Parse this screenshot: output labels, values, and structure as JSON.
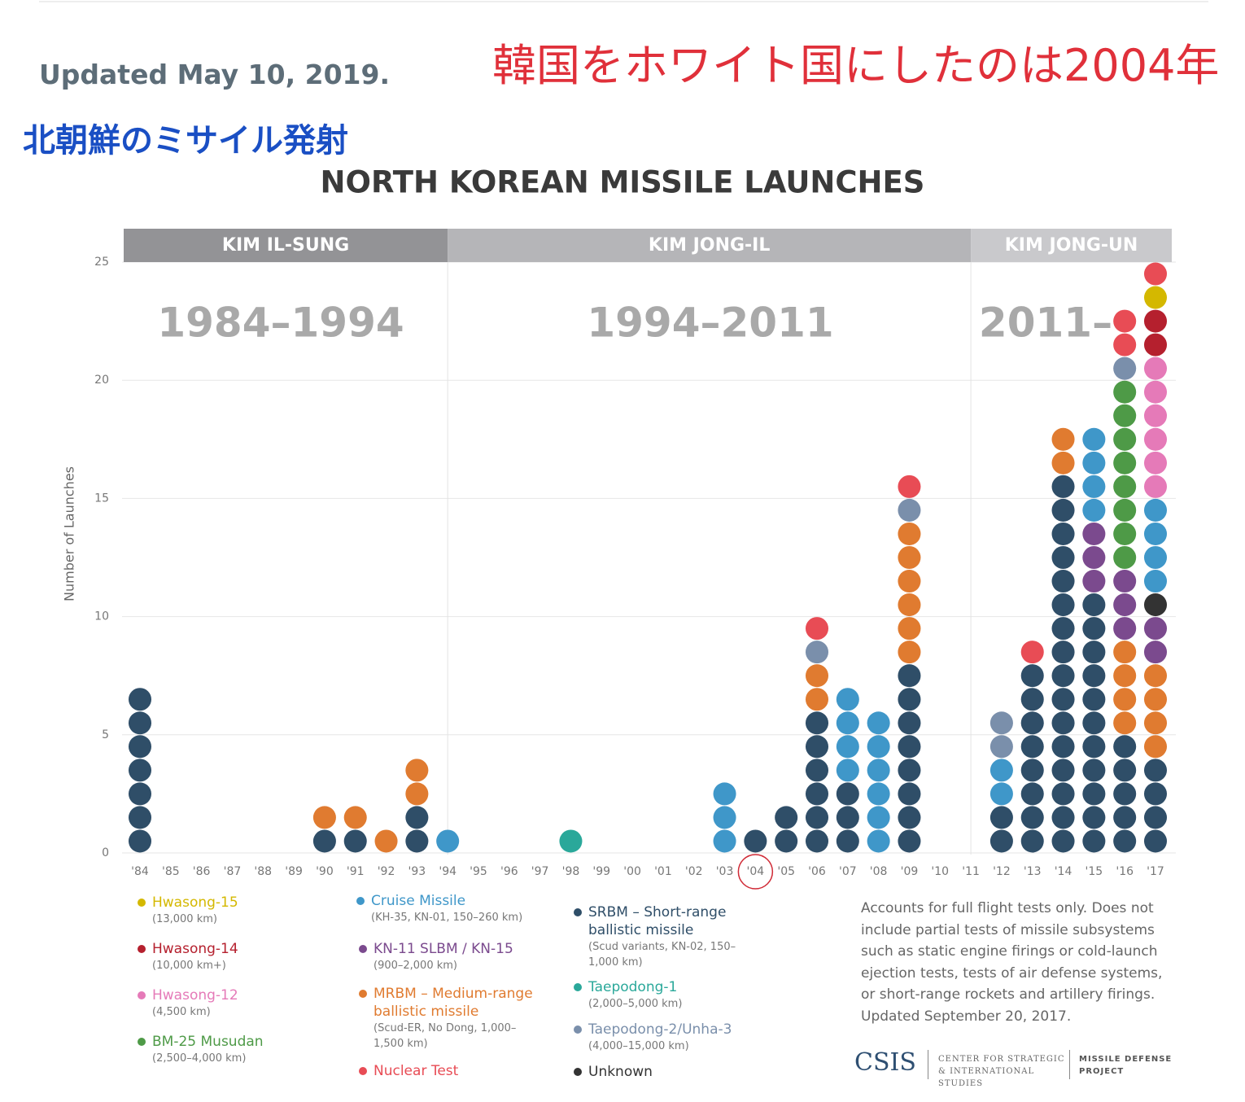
{
  "header": {
    "updated": "Updated May 10, 2019.",
    "subtitle_jp": "北朝鮮のミサイル発射",
    "annotation_jp": "韓国をホワイト国にしたのは2004年"
  },
  "chart_data": {
    "type": "dot-stack",
    "title": "NORTH KOREAN MISSILE LAUNCHES",
    "ylabel": "Number of Launches",
    "eras": [
      {
        "leader": "KIM IL-SUNG",
        "years": "1984–1994"
      },
      {
        "leader": "KIM JONG-IL",
        "years": "1994–2011"
      },
      {
        "leader": "KIM JONG-UN",
        "years": "2011–"
      }
    ],
    "categories": [
      "'84",
      "'85",
      "'86",
      "'87",
      "'88",
      "'89",
      "'90",
      "'91",
      "'92",
      "'93",
      "'94",
      "'95",
      "'96",
      "'97",
      "'98",
      "'99",
      "'00",
      "'01",
      "'02",
      "'03",
      "'04",
      "'05",
      "'06",
      "'07",
      "'08",
      "'09",
      "'10",
      "'11",
      "'12",
      "'13",
      "'14",
      "'15",
      "'16",
      "'17"
    ],
    "ylim": [
      0,
      25
    ],
    "yticks": [
      0,
      5,
      10,
      15,
      20,
      25
    ],
    "grid": true,
    "series": [
      {
        "name": "SRBM – Short-range ballistic missile",
        "detail": "(Scud variants, KN-02, 150–1,000 km)",
        "color": "#2f4e68",
        "values": [
          7,
          0,
          0,
          0,
          0,
          0,
          1,
          1,
          0,
          2,
          0,
          0,
          0,
          0,
          0,
          0,
          0,
          0,
          0,
          0,
          1,
          2,
          6,
          3,
          0,
          8,
          0,
          0,
          2,
          8,
          16,
          11,
          5,
          4
        ]
      },
      {
        "name": "MRBM – Medium-range ballistic missile",
        "detail": "(Scud-ER, No Dong, 1,000–1,500 km)",
        "color": "#e07b30",
        "values": [
          0,
          0,
          0,
          0,
          0,
          0,
          1,
          1,
          1,
          2,
          0,
          0,
          0,
          0,
          0,
          0,
          0,
          0,
          0,
          0,
          0,
          0,
          2,
          0,
          0,
          6,
          0,
          0,
          0,
          0,
          2,
          0,
          4,
          4
        ]
      },
      {
        "name": "Taepodong-1",
        "detail": "(2,000–5,000 km)",
        "color": "#2aa89a",
        "values": [
          0,
          0,
          0,
          0,
          0,
          0,
          0,
          0,
          0,
          0,
          0,
          0,
          0,
          0,
          1,
          0,
          0,
          0,
          0,
          0,
          0,
          0,
          0,
          0,
          0,
          0,
          0,
          0,
          0,
          0,
          0,
          0,
          0,
          0
        ]
      },
      {
        "name": "KN-11 SLBM / KN-15",
        "detail": "(900–2,000 km)",
        "color": "#7b4a8e",
        "values": [
          0,
          0,
          0,
          0,
          0,
          0,
          0,
          0,
          0,
          0,
          0,
          0,
          0,
          0,
          0,
          0,
          0,
          0,
          0,
          0,
          0,
          0,
          0,
          0,
          0,
          0,
          0,
          0,
          0,
          0,
          0,
          3,
          3,
          2
        ]
      },
      {
        "name": "Unknown",
        "color": "#333333",
        "values": [
          0,
          0,
          0,
          0,
          0,
          0,
          0,
          0,
          0,
          0,
          0,
          0,
          0,
          0,
          0,
          0,
          0,
          0,
          0,
          0,
          0,
          0,
          0,
          0,
          0,
          0,
          0,
          0,
          0,
          0,
          0,
          0,
          0,
          1
        ]
      },
      {
        "name": "Cruise Missile",
        "detail": "(KH-35, KN-01, 150–260 km)",
        "color": "#3f97c9",
        "values": [
          0,
          0,
          0,
          0,
          0,
          0,
          0,
          0,
          0,
          0,
          1,
          0,
          0,
          0,
          0,
          0,
          0,
          0,
          0,
          3,
          0,
          0,
          0,
          4,
          6,
          0,
          0,
          0,
          2,
          0,
          0,
          4,
          0,
          4
        ]
      },
      {
        "name": "BM-25 Musudan",
        "detail": "(2,500–4,000 km)",
        "color": "#4e9a47",
        "values": [
          0,
          0,
          0,
          0,
          0,
          0,
          0,
          0,
          0,
          0,
          0,
          0,
          0,
          0,
          0,
          0,
          0,
          0,
          0,
          0,
          0,
          0,
          0,
          0,
          0,
          0,
          0,
          0,
          0,
          0,
          0,
          0,
          8,
          0
        ]
      },
      {
        "name": "Taepodong-2/Unha-3",
        "detail": "(4,000–15,000 km)",
        "color": "#7a8fab",
        "values": [
          0,
          0,
          0,
          0,
          0,
          0,
          0,
          0,
          0,
          0,
          0,
          0,
          0,
          0,
          0,
          0,
          0,
          0,
          0,
          0,
          0,
          0,
          1,
          0,
          0,
          1,
          0,
          0,
          2,
          0,
          0,
          0,
          1,
          0
        ]
      },
      {
        "name": "Hwasong-12",
        "detail": "(4,500 km)",
        "color": "#e57ab8",
        "values": [
          0,
          0,
          0,
          0,
          0,
          0,
          0,
          0,
          0,
          0,
          0,
          0,
          0,
          0,
          0,
          0,
          0,
          0,
          0,
          0,
          0,
          0,
          0,
          0,
          0,
          0,
          0,
          0,
          0,
          0,
          0,
          0,
          0,
          6
        ]
      },
      {
        "name": "Hwasong-14",
        "detail": "(10,000 km+)",
        "color": "#b5202e",
        "values": [
          0,
          0,
          0,
          0,
          0,
          0,
          0,
          0,
          0,
          0,
          0,
          0,
          0,
          0,
          0,
          0,
          0,
          0,
          0,
          0,
          0,
          0,
          0,
          0,
          0,
          0,
          0,
          0,
          0,
          0,
          0,
          0,
          0,
          2
        ]
      },
      {
        "name": "Hwasong-15",
        "detail": "(13,000 km)",
        "color": "#d4b800",
        "values": [
          0,
          0,
          0,
          0,
          0,
          0,
          0,
          0,
          0,
          0,
          0,
          0,
          0,
          0,
          0,
          0,
          0,
          0,
          0,
          0,
          0,
          0,
          0,
          0,
          0,
          0,
          0,
          0,
          0,
          0,
          0,
          0,
          0,
          1
        ]
      },
      {
        "name": "Nuclear Test",
        "color": "#e84c55",
        "values": [
          0,
          0,
          0,
          0,
          0,
          0,
          0,
          0,
          0,
          0,
          0,
          0,
          0,
          0,
          0,
          0,
          0,
          0,
          0,
          0,
          0,
          0,
          1,
          0,
          0,
          1,
          0,
          0,
          0,
          1,
          0,
          0,
          2,
          1
        ]
      }
    ],
    "note": "Accounts for full flight tests only. Does not include partial tests of missile subsystems such as static engine firings or cold-launch ejection tests, tests of air defense systems, or short-range rockets and artillery firings. Updated September 20, 2017.",
    "logo": {
      "name": "CSIS",
      "org": "CENTER FOR STRATEGIC & INTERNATIONAL STUDIES",
      "project": "MISSILE DEFENSE PROJECT"
    }
  }
}
